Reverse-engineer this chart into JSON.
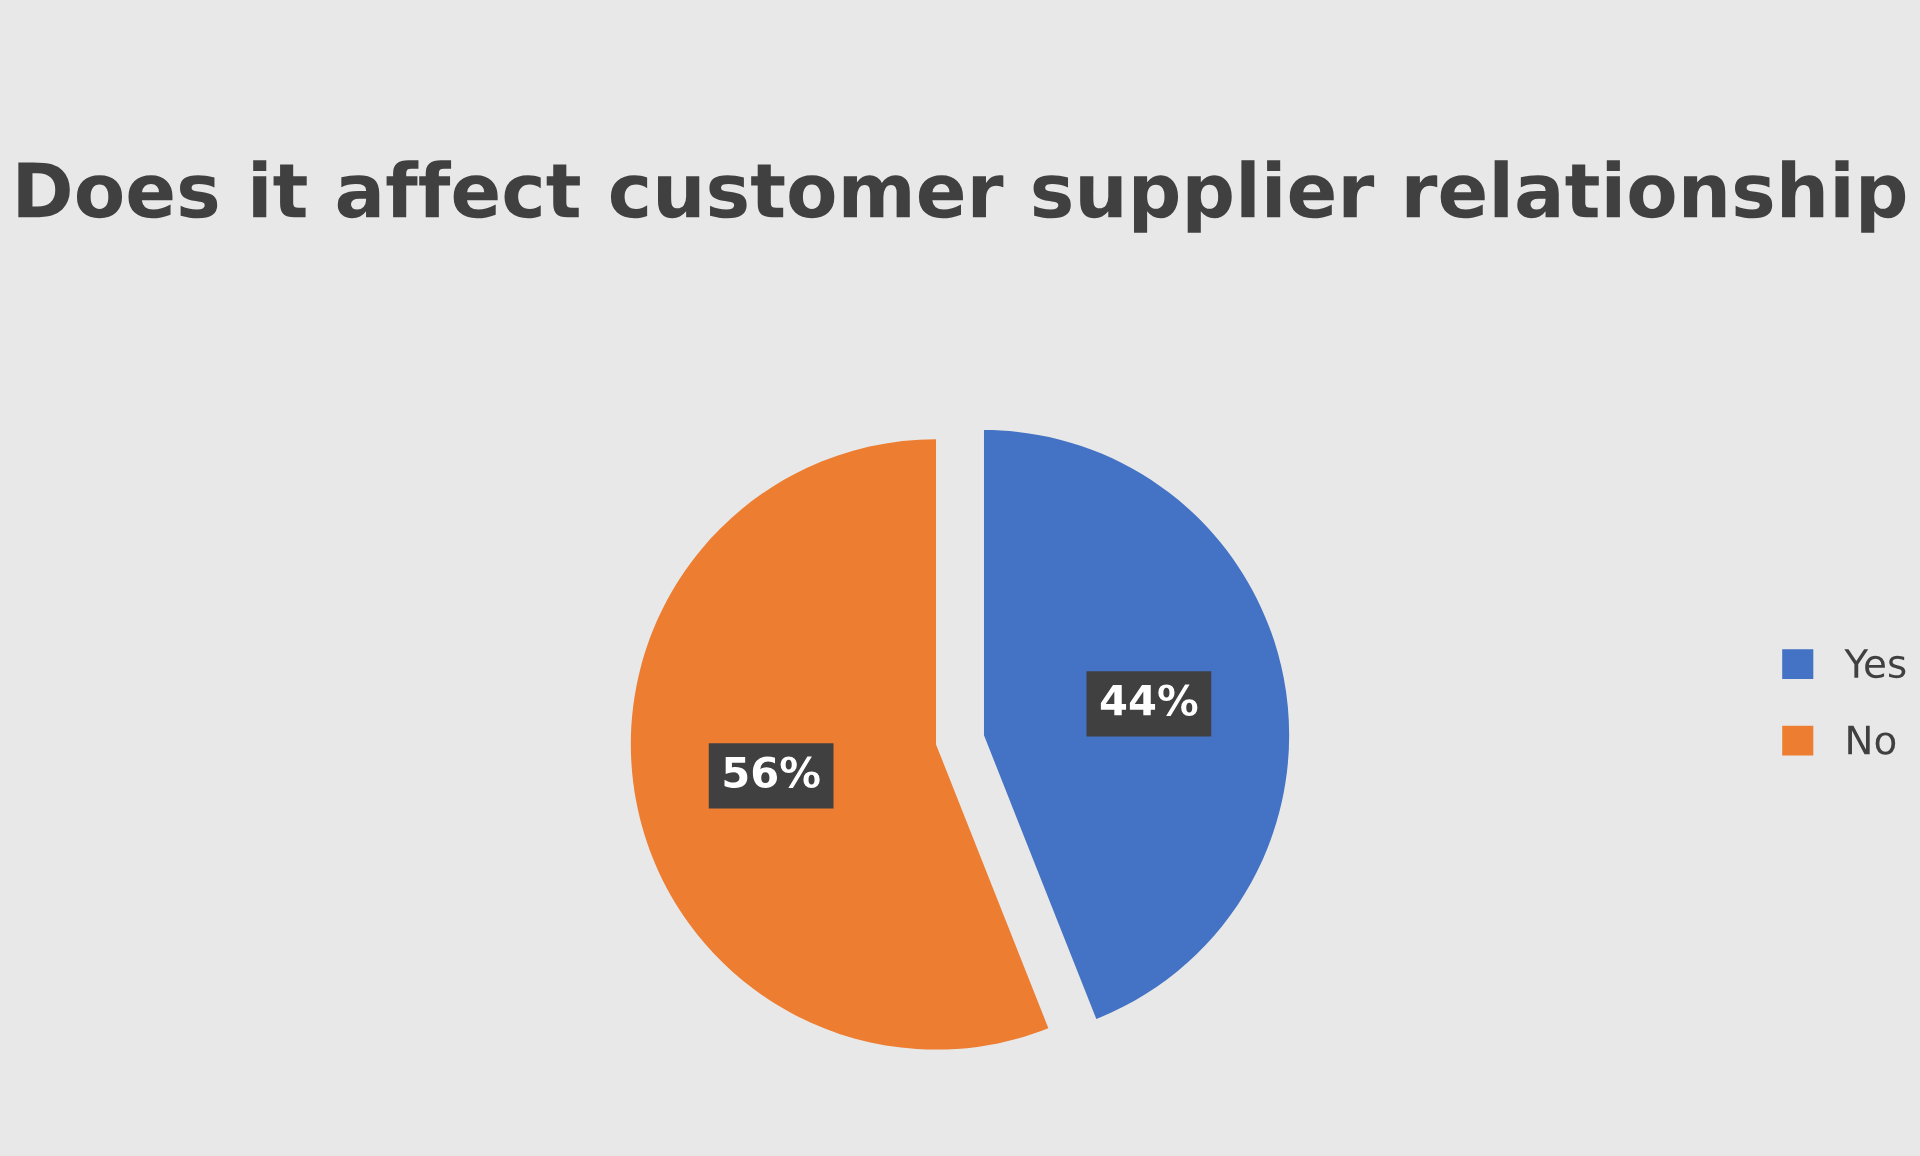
{
  "chart_data": {
    "type": "pie",
    "title": "Does it affect customer supplier relationship",
    "categories": [
      "Yes",
      "No"
    ],
    "values": [
      44,
      56
    ],
    "value_labels": [
      "44%",
      "56%"
    ],
    "colors": [
      "#4472c4",
      "#ed7d31"
    ],
    "legend": "right"
  }
}
